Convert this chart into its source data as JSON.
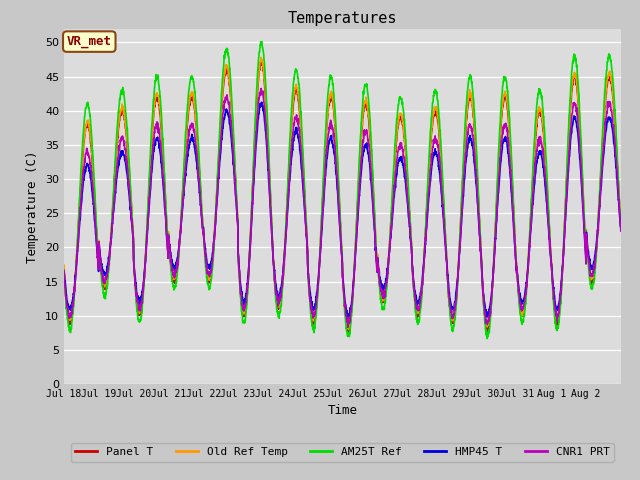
{
  "title": "Temperatures",
  "xlabel": "Time",
  "ylabel": "Temperature (C)",
  "ylim": [
    0,
    52
  ],
  "yticks": [
    0,
    5,
    10,
    15,
    20,
    25,
    30,
    35,
    40,
    45,
    50
  ],
  "plot_bg": "#dcdcdc",
  "fig_bg": "#c8c8c8",
  "annotation_text": "VR_met",
  "annotation_box_color": "#ffffcc",
  "annotation_border_color": "#8B4513",
  "series_order": [
    "Panel T",
    "Old Ref Temp",
    "AM25T Ref",
    "HMP45 T",
    "CNR1 PRT"
  ],
  "series": {
    "Panel T": {
      "color": "#cc0000",
      "lw": 1.2
    },
    "Old Ref Temp": {
      "color": "#ff9900",
      "lw": 1.2
    },
    "AM25T Ref": {
      "color": "#00dd00",
      "lw": 1.2
    },
    "HMP45 T": {
      "color": "#0000dd",
      "lw": 1.2
    },
    "CNR1 PRT": {
      "color": "#bb00bb",
      "lw": 1.2
    }
  },
  "xtick_labels": [
    "Jul 18",
    "Jul 19",
    "Jul 20",
    "Jul 21",
    "Jul 22",
    "Jul 23",
    "Jul 24",
    "Jul 25",
    "Jul 26",
    "Jul 27",
    "Jul 28",
    "Jul 29",
    "Jul 30",
    "Jul 31",
    "Aug 1",
    "Aug 2"
  ],
  "n_days": 16,
  "pts_per_day": 144,
  "day_maxes_base": [
    38,
    40,
    42,
    42,
    46,
    47,
    43,
    42,
    41,
    39,
    40,
    42,
    42,
    40,
    45,
    45
  ],
  "day_mins_base": [
    9,
    14,
    10,
    15,
    15,
    10,
    11,
    9,
    8,
    12,
    10,
    9,
    8,
    10,
    9,
    15
  ]
}
